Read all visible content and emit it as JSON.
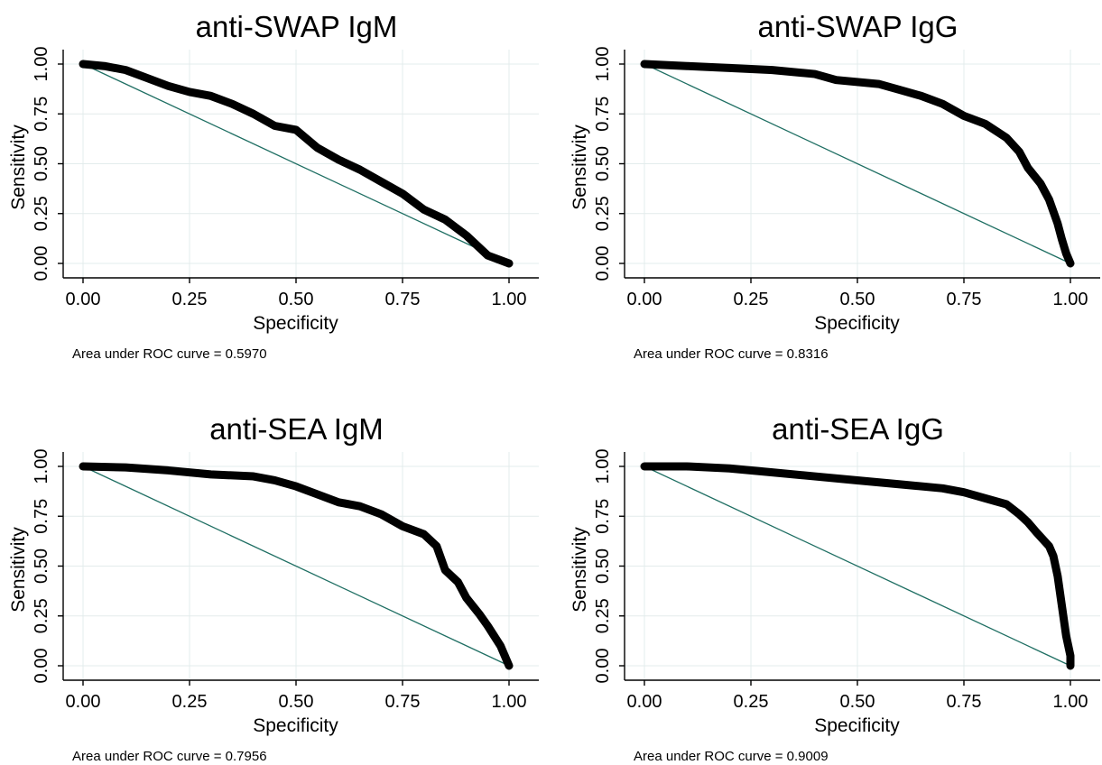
{
  "colors": {
    "roc_curve": "#000000",
    "reference_line": "#1f6f63",
    "grid": "#e3ecec",
    "background": "#ffffff"
  },
  "chart_data": [
    {
      "type": "line",
      "title": "anti-SWAP IgM",
      "xlabel": "Specificity",
      "ylabel": "Sensitivity",
      "xlim": [
        0,
        1
      ],
      "ylim": [
        0,
        1
      ],
      "xticks": [
        "0.00",
        "0.25",
        "0.50",
        "0.75",
        "1.00"
      ],
      "yticks": [
        "0.00",
        "0.25",
        "0.50",
        "0.75",
        "1.00"
      ],
      "grid": true,
      "note": "Area under ROC curve = 0.5970",
      "series": [
        {
          "x": [
            0,
            0.05,
            0.1,
            0.15,
            0.2,
            0.25,
            0.3,
            0.35,
            0.4,
            0.45,
            0.5,
            0.55,
            0.6,
            0.65,
            0.7,
            0.75,
            0.8,
            0.85,
            0.9,
            0.95,
            1.0
          ],
          "y": [
            1.0,
            0.99,
            0.97,
            0.93,
            0.89,
            0.86,
            0.84,
            0.8,
            0.75,
            0.69,
            0.67,
            0.58,
            0.52,
            0.47,
            0.41,
            0.35,
            0.27,
            0.22,
            0.14,
            0.04,
            0.0
          ]
        },
        {
          "x": [
            0,
            1
          ],
          "y": [
            1,
            0
          ]
        }
      ]
    },
    {
      "type": "line",
      "title": "anti-SWAP IgG",
      "xlabel": "Specificity",
      "ylabel": "Sensitivity",
      "xlim": [
        0,
        1
      ],
      "ylim": [
        0,
        1
      ],
      "xticks": [
        "0.00",
        "0.25",
        "0.50",
        "0.75",
        "1.00"
      ],
      "yticks": [
        "0.00",
        "0.25",
        "0.50",
        "0.75",
        "1.00"
      ],
      "grid": true,
      "note": "Area under ROC curve = 0.8316",
      "series": [
        {
          "x": [
            0,
            0.1,
            0.2,
            0.3,
            0.4,
            0.45,
            0.55,
            0.6,
            0.65,
            0.7,
            0.75,
            0.8,
            0.85,
            0.88,
            0.9,
            0.93,
            0.95,
            0.97,
            0.98,
            0.99,
            1.0
          ],
          "y": [
            1.0,
            0.99,
            0.98,
            0.97,
            0.95,
            0.92,
            0.9,
            0.87,
            0.84,
            0.8,
            0.74,
            0.7,
            0.63,
            0.56,
            0.48,
            0.4,
            0.32,
            0.2,
            0.12,
            0.05,
            0.0
          ]
        },
        {
          "x": [
            0,
            1
          ],
          "y": [
            1,
            0
          ]
        }
      ]
    },
    {
      "type": "line",
      "title": "anti-SEA IgM",
      "xlabel": "Specificity",
      "ylabel": "Sensitivity",
      "xlim": [
        0,
        1
      ],
      "ylim": [
        0,
        1
      ],
      "xticks": [
        "0.00",
        "0.25",
        "0.50",
        "0.75",
        "1.00"
      ],
      "yticks": [
        "0.00",
        "0.25",
        "0.50",
        "0.75",
        "1.00"
      ],
      "grid": true,
      "note": "Area under ROC curve = 0.7956",
      "series": [
        {
          "x": [
            0,
            0.1,
            0.2,
            0.3,
            0.4,
            0.45,
            0.5,
            0.55,
            0.6,
            0.65,
            0.7,
            0.75,
            0.8,
            0.83,
            0.85,
            0.88,
            0.9,
            0.93,
            0.95,
            0.98,
            1.0
          ],
          "y": [
            1.0,
            0.995,
            0.98,
            0.96,
            0.95,
            0.93,
            0.9,
            0.86,
            0.82,
            0.8,
            0.76,
            0.7,
            0.66,
            0.6,
            0.48,
            0.42,
            0.34,
            0.26,
            0.2,
            0.1,
            0.0
          ]
        },
        {
          "x": [
            0,
            1
          ],
          "y": [
            1,
            0
          ]
        }
      ]
    },
    {
      "type": "line",
      "title": "anti-SEA IgG",
      "xlabel": "Specificity",
      "ylabel": "Sensitivity",
      "xlim": [
        0,
        1
      ],
      "ylim": [
        0,
        1
      ],
      "xticks": [
        "0.00",
        "0.25",
        "0.50",
        "0.75",
        "1.00"
      ],
      "yticks": [
        "0.00",
        "0.25",
        "0.50",
        "0.75",
        "1.00"
      ],
      "grid": true,
      "note": "Area under ROC curve = 0.9009",
      "series": [
        {
          "x": [
            0,
            0.1,
            0.2,
            0.3,
            0.4,
            0.5,
            0.6,
            0.7,
            0.75,
            0.8,
            0.85,
            0.88,
            0.9,
            0.92,
            0.95,
            0.96,
            0.97,
            0.98,
            0.99,
            1.0,
            1.0
          ],
          "y": [
            1.0,
            1.0,
            0.99,
            0.97,
            0.95,
            0.93,
            0.91,
            0.89,
            0.87,
            0.84,
            0.81,
            0.76,
            0.72,
            0.67,
            0.6,
            0.55,
            0.45,
            0.3,
            0.15,
            0.05,
            0.0
          ]
        },
        {
          "x": [
            0,
            1
          ],
          "y": [
            1,
            0
          ]
        }
      ]
    }
  ]
}
